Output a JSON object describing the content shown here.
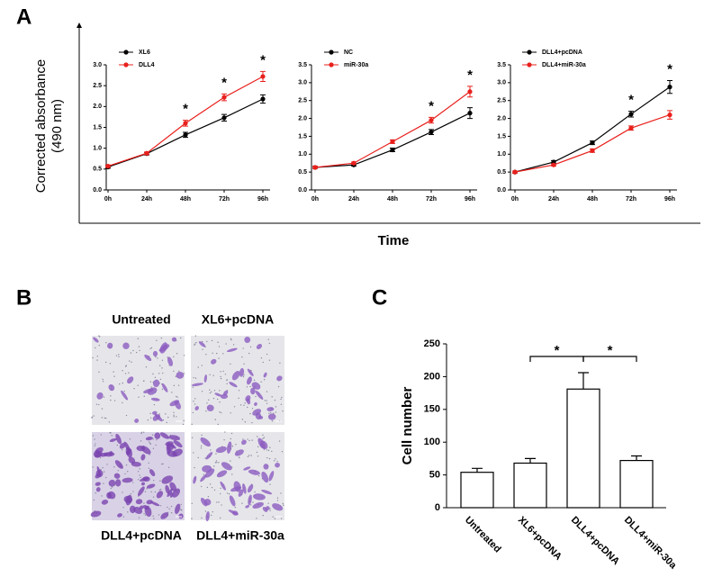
{
  "figure": {
    "panel_labels": [
      "A",
      "B",
      "C"
    ],
    "y_label_lines": [
      "Corrected absorbance",
      "(490 nm)"
    ],
    "x_label": "Time"
  },
  "images": {
    "labels": [
      "Untreated",
      "XL6+pcDNA",
      "DLL4+pcDNA",
      "DLL4+miR-30a"
    ]
  },
  "chart_data": [
    {
      "type": "line",
      "categories": [
        "0h",
        "24h",
        "48h",
        "72h",
        "96h"
      ],
      "legend": "upper left",
      "ylim": [
        0,
        3.0
      ],
      "yticks": [
        {
          "value": 0,
          "label": "0.0"
        },
        {
          "value": 0.5,
          "label": "0.5"
        },
        {
          "value": 1,
          "label": "1.0"
        },
        {
          "value": 1.5,
          "label": "1.5"
        },
        {
          "value": 2,
          "label": "2.0"
        },
        {
          "value": 2.5,
          "label": "2.5"
        },
        {
          "value": 3,
          "label": "3.0"
        }
      ],
      "series": [
        {
          "name": "XL6",
          "color": "#000000",
          "values": [
            0.55,
            0.87,
            1.32,
            1.73,
            2.18
          ],
          "errors": [
            0.03,
            0.03,
            0.06,
            0.08,
            0.1
          ]
        },
        {
          "name": "DLL4",
          "color": "#e8201c",
          "values": [
            0.57,
            0.88,
            1.6,
            2.22,
            2.72
          ],
          "errors": [
            0.03,
            0.03,
            0.07,
            0.08,
            0.12
          ]
        }
      ],
      "annotations": [
        {
          "text": "*",
          "x": "48h"
        },
        {
          "text": "*",
          "x": "72h"
        },
        {
          "text": "*",
          "x": "96h"
        }
      ]
    },
    {
      "type": "line",
      "categories": [
        "0h",
        "24h",
        "48h",
        "72h",
        "96h"
      ],
      "legend": "upper left",
      "ylim": [
        0,
        3.5
      ],
      "yticks": [
        {
          "value": 0,
          "label": "0.0"
        },
        {
          "value": 0.5,
          "label": "0.5"
        },
        {
          "value": 1,
          "label": "1.0"
        },
        {
          "value": 1.5,
          "label": "1.5"
        },
        {
          "value": 2,
          "label": "2.0"
        },
        {
          "value": 2.5,
          "label": "2.5"
        },
        {
          "value": 3,
          "label": "3.0"
        },
        {
          "value": 3.5,
          "label": "3.5"
        }
      ],
      "series": [
        {
          "name": "NC",
          "color": "#000000",
          "values": [
            0.63,
            0.7,
            1.12,
            1.62,
            2.15
          ],
          "errors": [
            0.03,
            0.03,
            0.05,
            0.07,
            0.15
          ]
        },
        {
          "name": "miR-30a",
          "color": "#e8201c",
          "values": [
            0.63,
            0.75,
            1.35,
            1.95,
            2.75
          ],
          "errors": [
            0.03,
            0.03,
            0.05,
            0.08,
            0.15
          ]
        }
      ],
      "annotations": [
        {
          "text": "*",
          "x": "72h"
        },
        {
          "text": "*",
          "x": "96h"
        }
      ]
    },
    {
      "type": "line",
      "categories": [
        "0h",
        "24h",
        "48h",
        "72h",
        "96h"
      ],
      "legend": "upper left",
      "ylim": [
        0,
        3.5
      ],
      "yticks": [
        {
          "value": 0,
          "label": "0.0"
        },
        {
          "value": 0.5,
          "label": "0.5"
        },
        {
          "value": 1,
          "label": "1.0"
        },
        {
          "value": 1.5,
          "label": "1.5"
        },
        {
          "value": 2,
          "label": "2.0"
        },
        {
          "value": 2.5,
          "label": "2.5"
        },
        {
          "value": 3,
          "label": "3.0"
        },
        {
          "value": 3.5,
          "label": "3.5"
        }
      ],
      "series": [
        {
          "name": "DLL4+pcDNA",
          "color": "#000000",
          "values": [
            0.5,
            0.78,
            1.32,
            2.12,
            2.88
          ],
          "errors": [
            0.03,
            0.04,
            0.05,
            0.08,
            0.18
          ]
        },
        {
          "name": "DLL4+miR-30a",
          "color": "#e8201c",
          "values": [
            0.5,
            0.7,
            1.1,
            1.73,
            2.1
          ],
          "errors": [
            0.03,
            0.03,
            0.05,
            0.06,
            0.12
          ]
        }
      ],
      "annotations": [
        {
          "text": "*",
          "x": "72h"
        },
        {
          "text": "*",
          "x": "96h"
        }
      ]
    },
    {
      "type": "bar",
      "y_label": "Cell number",
      "color": "#ffffff",
      "categories": [
        "Untreated",
        "XL6+pcDNA",
        "DLL4+pcDNA",
        "DLL4+miR-30a"
      ],
      "values": [
        54,
        68,
        181,
        72
      ],
      "errors": [
        6,
        7,
        25,
        7
      ],
      "ylim": [
        0,
        250
      ],
      "yticks": [
        0,
        50,
        100,
        150,
        200,
        250
      ],
      "annotations": [
        {
          "text": "*",
          "from": "XL6+pcDNA",
          "to": "DLL4+pcDNA"
        },
        {
          "text": "*",
          "from": "DLL4+pcDNA",
          "to": "DLL4+miR-30a"
        }
      ]
    }
  ]
}
